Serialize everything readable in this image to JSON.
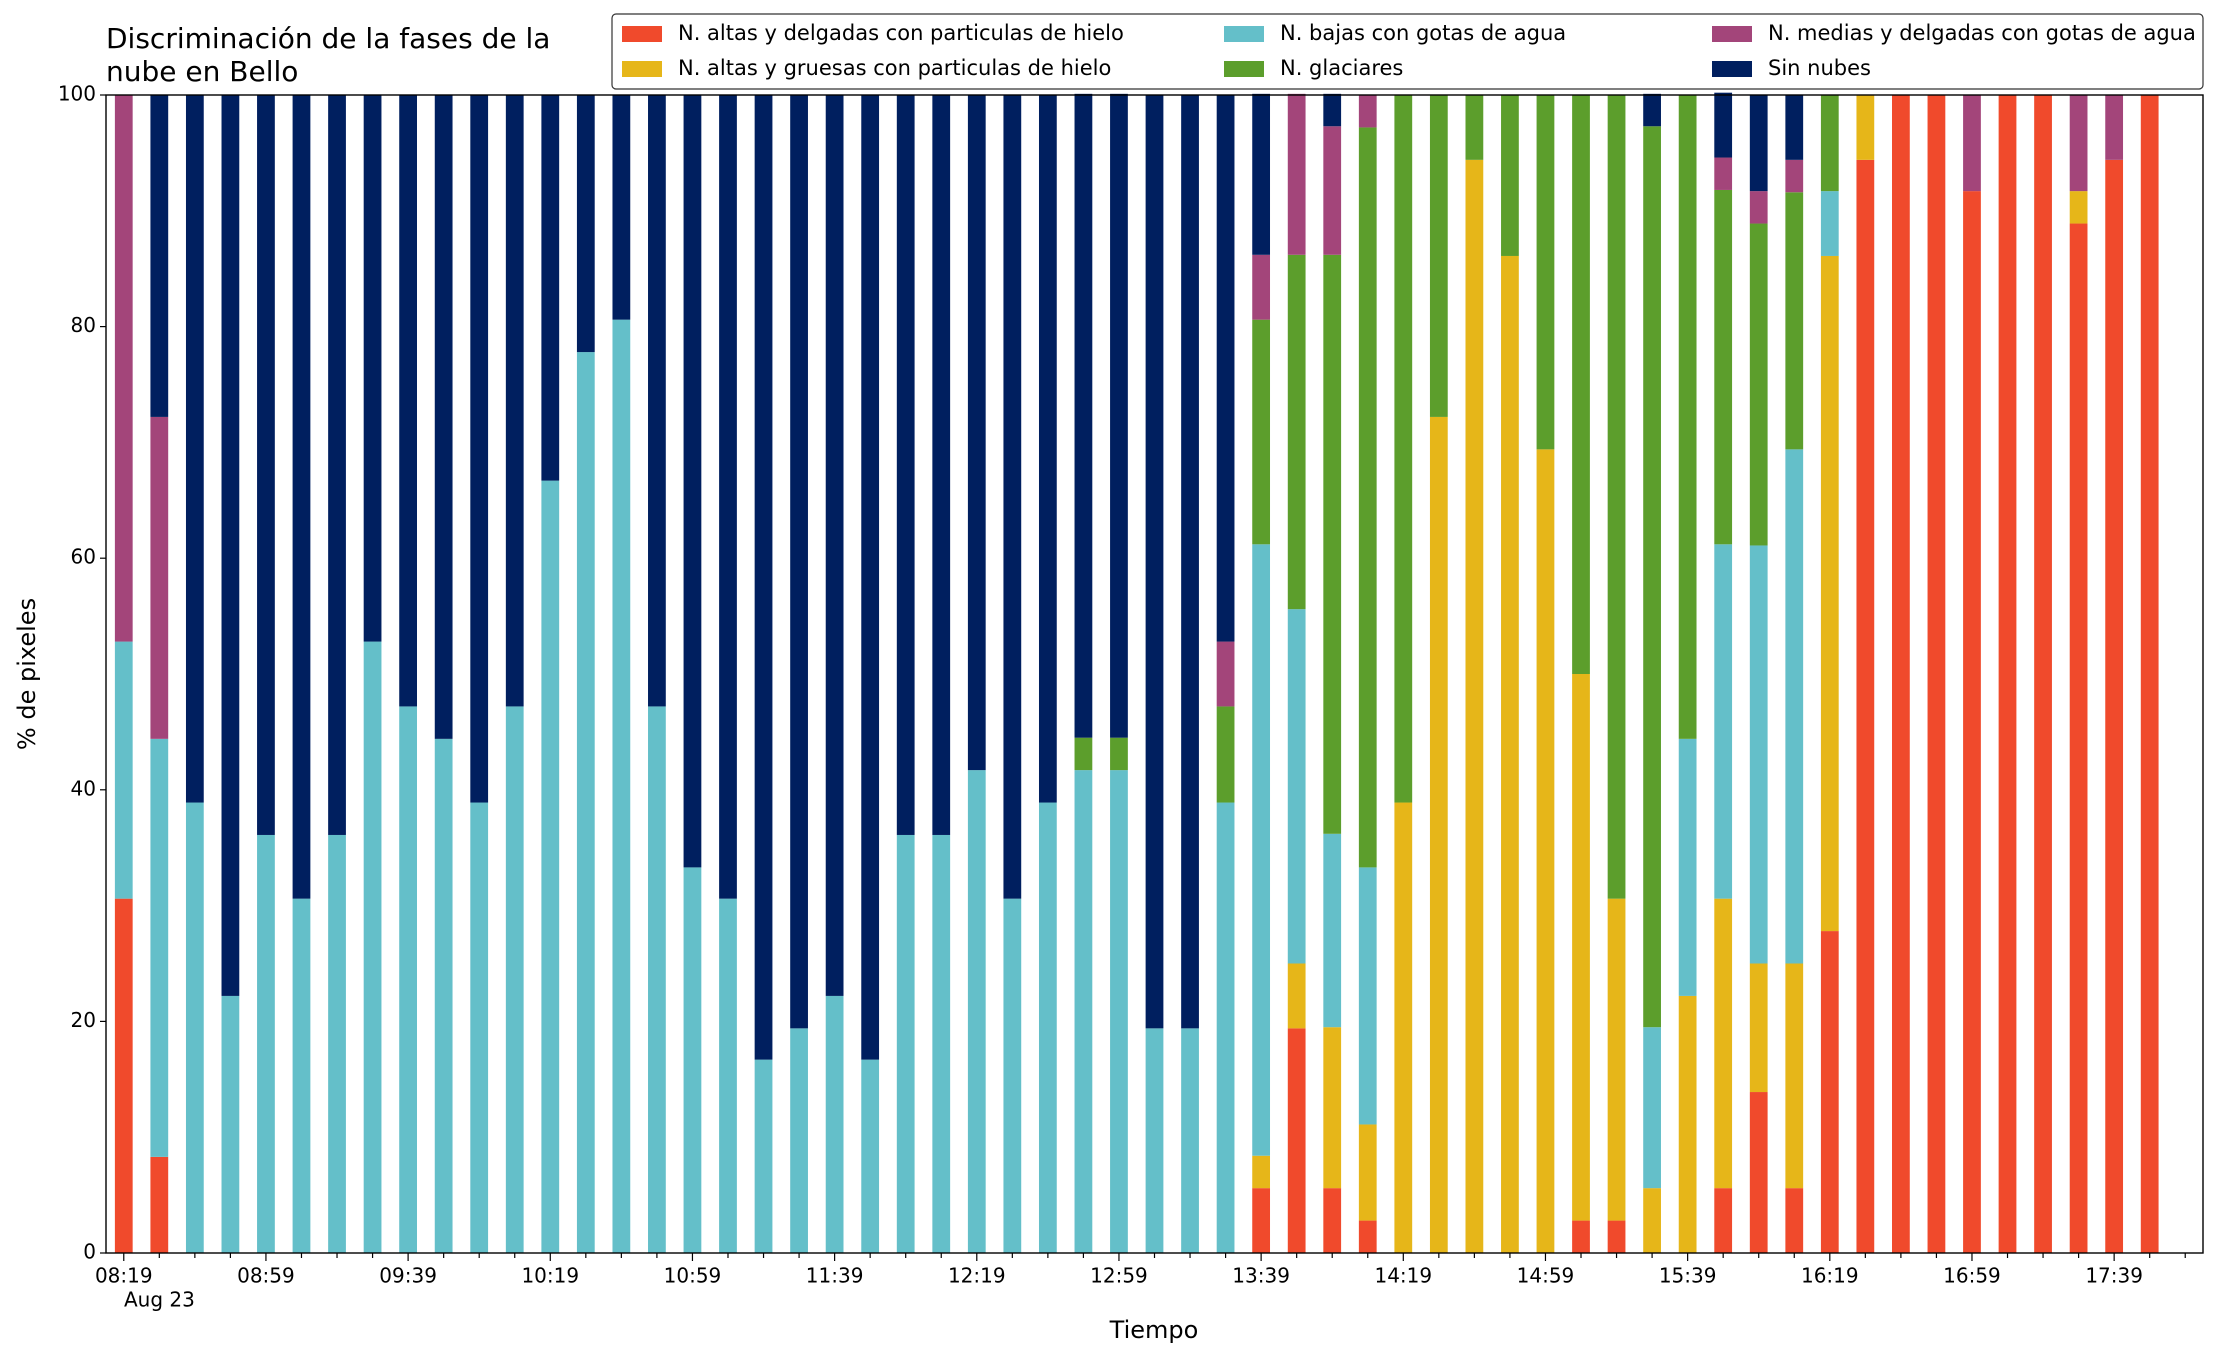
{
  "chart_data": {
    "type": "stacked_bar",
    "title": [
      "Discriminación de la fases de la",
      "nube en Bello"
    ],
    "x_label": "Tiempo",
    "y_label": "% de pixeles",
    "x_sublabel": "Aug 23",
    "categories": [
      "08:19",
      null,
      null,
      null,
      "08:59",
      null,
      null,
      null,
      "09:39",
      null,
      null,
      null,
      "10:19",
      null,
      null,
      null,
      "10:59",
      null,
      null,
      null,
      "11:39",
      null,
      null,
      null,
      "12:19",
      null,
      null,
      null,
      "12:59",
      null,
      null,
      null,
      "13:39",
      null,
      null,
      null,
      "14:19",
      null,
      null,
      null,
      "14:59",
      null,
      null,
      null,
      "15:39",
      null,
      null,
      null,
      "16:19",
      null,
      null,
      null,
      "16:59",
      null,
      null,
      null,
      "17:39",
      null
    ],
    "ylim": [
      0,
      100
    ],
    "yticks": [
      0,
      20,
      40,
      60,
      80,
      100
    ],
    "grid": false,
    "legend_position": "upper right",
    "series": [
      {
        "name": "N. altas y delgadas con particulas de hielo",
        "color": "#f04a2c",
        "values": [
          30.6,
          8.3,
          0,
          0,
          0,
          0,
          0,
          0,
          0,
          0,
          0,
          0,
          0,
          0,
          0,
          0,
          0,
          0,
          0,
          0,
          0,
          0,
          0,
          0,
          0,
          0,
          0,
          0,
          0,
          0,
          0,
          0,
          5.6,
          19.4,
          5.6,
          2.8,
          0,
          0,
          0,
          0,
          0,
          2.8,
          2.8,
          0,
          0,
          5.6,
          13.9,
          5.6,
          27.8,
          94.4,
          100,
          100,
          91.7,
          100,
          100,
          88.9,
          94.4,
          100
        ]
      },
      {
        "name": "N. altas y gruesas con particulas de hielo",
        "color": "#e6b619",
        "values": [
          0,
          0,
          0,
          0,
          0,
          0,
          0,
          0,
          0,
          0,
          0,
          0,
          0,
          0,
          0,
          0,
          0,
          0,
          0,
          0,
          0,
          0,
          0,
          0,
          0,
          0,
          0,
          0,
          0,
          0,
          0,
          0,
          2.8,
          5.6,
          13.9,
          8.3,
          38.9,
          72.2,
          94.4,
          86.1,
          69.4,
          47.2,
          27.8,
          5.6,
          22.2,
          25,
          11.1,
          19.4,
          58.3,
          5.6,
          0,
          0,
          0,
          0,
          0,
          2.8,
          0,
          0
        ]
      },
      {
        "name": "N. bajas con gotas de agua",
        "color": "#64bfc9",
        "values": [
          22.2,
          36.1,
          38.9,
          22.2,
          36.1,
          30.6,
          36.1,
          52.8,
          47.2,
          44.4,
          38.9,
          47.2,
          66.7,
          77.8,
          80.6,
          47.2,
          33.3,
          30.6,
          16.7,
          19.4,
          22.2,
          16.7,
          36.1,
          36.1,
          41.7,
          30.6,
          38.9,
          41.7,
          41.7,
          19.4,
          19.4,
          38.9,
          52.8,
          30.6,
          16.7,
          22.2,
          0,
          0,
          0,
          0,
          0,
          0,
          0,
          13.9,
          22.2,
          30.6,
          36.1,
          44.4,
          5.6,
          0,
          0,
          0,
          0,
          0,
          0,
          0,
          0,
          0
        ]
      },
      {
        "name": "N. glaciares",
        "color": "#5c9e2c",
        "values": [
          0,
          0,
          0,
          0,
          0,
          0,
          0,
          0,
          0,
          0,
          0,
          0,
          0,
          0,
          0,
          0,
          0,
          0,
          0,
          0,
          0,
          0,
          0,
          0,
          0,
          0,
          0,
          2.8,
          2.8,
          0,
          0,
          8.3,
          19.4,
          30.6,
          50,
          63.9,
          61.1,
          27.8,
          5.6,
          13.9,
          30.6,
          50,
          69.4,
          77.8,
          55.6,
          30.6,
          27.8,
          22.2,
          8.3,
          0,
          0,
          0,
          0,
          0,
          0,
          0,
          0,
          0
        ]
      },
      {
        "name": "N. medias y delgadas con gotas de agua",
        "color": "#a3457a",
        "values": [
          47.2,
          27.8,
          0,
          0,
          0,
          0,
          0,
          0,
          0,
          0,
          0,
          0,
          0,
          0,
          0,
          0,
          0,
          0,
          0,
          0,
          0,
          0,
          0,
          0,
          0,
          0,
          0,
          0,
          0,
          0,
          0,
          5.6,
          5.6,
          13.9,
          11.1,
          2.8,
          0,
          0,
          0,
          0,
          0,
          0,
          0,
          0,
          0,
          2.8,
          2.8,
          2.8,
          0,
          0,
          0,
          0,
          8.3,
          0,
          0,
          8.3,
          5.6,
          0
        ]
      },
      {
        "name": "Sin nubes",
        "color": "#001f5f",
        "values": [
          0,
          27.8,
          61.1,
          77.8,
          63.9,
          69.4,
          63.9,
          47.2,
          52.8,
          55.6,
          61.1,
          52.8,
          33.3,
          22.2,
          19.4,
          52.8,
          66.7,
          69.4,
          83.3,
          80.6,
          77.8,
          83.3,
          63.9,
          63.9,
          58.3,
          69.4,
          61.1,
          55.6,
          55.6,
          80.6,
          80.6,
          47.2,
          13.9,
          0,
          2.8,
          0,
          0,
          0,
          0,
          0,
          0,
          0,
          0,
          2.8,
          0,
          5.6,
          8.3,
          5.6,
          0,
          0,
          0,
          0,
          0,
          0,
          0,
          0,
          0,
          0
        ]
      }
    ]
  }
}
